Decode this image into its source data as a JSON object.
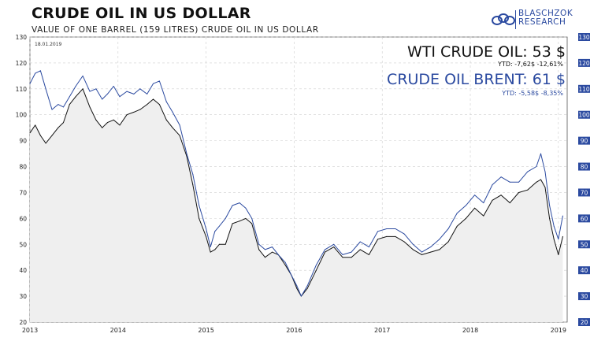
{
  "header": {
    "title": "CRUDE OIL IN US DOLLAR",
    "subtitle": "VALUE OF ONE BARREL (159 LITRES) CRUDE OIL IN US DOLLAR",
    "logo_line1": "BLASCHZOK",
    "logo_line2": "RESEARCH",
    "date": "18.01.2019"
  },
  "annotations": {
    "wti_label": "WTI CRUDE OIL: 53 $",
    "wti_ytd": "YTD:   -7,62$   -12,61%",
    "brent_label": "CRUDE OIL BRENT: 61 $",
    "brent_ytd": "YTD:   -5,58$   -8,35%"
  },
  "colors": {
    "wti": "#111111",
    "brent": "#2b4aa0",
    "fill": "#efefef",
    "right_axis": "#2b4aa0"
  },
  "chart_data": {
    "type": "line",
    "title": "CRUDE OIL IN US DOLLAR",
    "xlabel": "",
    "ylabel": "",
    "ylim": [
      20,
      130
    ],
    "xlim": [
      2013.0,
      2019.1
    ],
    "yticks": [
      20,
      30,
      40,
      50,
      60,
      70,
      80,
      90,
      100,
      110,
      120,
      130
    ],
    "xticks": [
      2013,
      2014,
      2015,
      2016,
      2017,
      2018,
      2019
    ],
    "grid": true,
    "series": [
      {
        "name": "WTI Crude Oil",
        "color": "#111111",
        "fill": true,
        "x": [
          2013.0,
          2013.06,
          2013.12,
          2013.18,
          2013.25,
          2013.32,
          2013.38,
          2013.45,
          2013.52,
          2013.6,
          2013.68,
          2013.75,
          2013.82,
          2013.88,
          2013.95,
          2014.02,
          2014.1,
          2014.18,
          2014.25,
          2014.33,
          2014.4,
          2014.47,
          2014.55,
          2014.62,
          2014.7,
          2014.78,
          2014.85,
          2014.92,
          2015.0,
          2015.05,
          2015.1,
          2015.15,
          2015.22,
          2015.3,
          2015.38,
          2015.45,
          2015.52,
          2015.6,
          2015.67,
          2015.75,
          2015.82,
          2015.9,
          2015.97,
          2016.03,
          2016.08,
          2016.15,
          2016.25,
          2016.35,
          2016.45,
          2016.55,
          2016.65,
          2016.75,
          2016.85,
          2016.95,
          2017.05,
          2017.15,
          2017.25,
          2017.35,
          2017.45,
          2017.55,
          2017.65,
          2017.75,
          2017.85,
          2017.95,
          2018.05,
          2018.15,
          2018.25,
          2018.35,
          2018.45,
          2018.55,
          2018.65,
          2018.75,
          2018.8,
          2018.85,
          2018.9,
          2018.95,
          2019.0,
          2019.05
        ],
        "values": [
          93,
          96,
          92,
          89,
          92,
          95,
          97,
          104,
          107,
          110,
          103,
          98,
          95,
          97,
          98,
          96,
          100,
          101,
          102,
          104,
          106,
          104,
          98,
          95,
          92,
          84,
          73,
          60,
          53,
          47,
          48,
          50,
          50,
          58,
          59,
          60,
          58,
          48,
          45,
          47,
          46,
          42,
          38,
          33,
          30,
          33,
          40,
          47,
          49,
          45,
          45,
          48,
          46,
          52,
          53,
          53,
          51,
          48,
          46,
          47,
          48,
          51,
          57,
          60,
          64,
          61,
          67,
          69,
          66,
          70,
          71,
          74,
          75,
          72,
          60,
          52,
          46,
          53
        ]
      },
      {
        "name": "Crude Oil Brent",
        "color": "#2b4aa0",
        "fill": false,
        "x": [
          2013.0,
          2013.06,
          2013.12,
          2013.18,
          2013.25,
          2013.32,
          2013.38,
          2013.45,
          2013.52,
          2013.6,
          2013.68,
          2013.75,
          2013.82,
          2013.88,
          2013.95,
          2014.02,
          2014.1,
          2014.18,
          2014.25,
          2014.33,
          2014.4,
          2014.47,
          2014.55,
          2014.62,
          2014.7,
          2014.78,
          2014.85,
          2014.92,
          2015.0,
          2015.05,
          2015.1,
          2015.15,
          2015.22,
          2015.3,
          2015.38,
          2015.45,
          2015.52,
          2015.6,
          2015.67,
          2015.75,
          2015.82,
          2015.9,
          2015.97,
          2016.03,
          2016.08,
          2016.15,
          2016.25,
          2016.35,
          2016.45,
          2016.55,
          2016.65,
          2016.75,
          2016.85,
          2016.95,
          2017.05,
          2017.15,
          2017.25,
          2017.35,
          2017.45,
          2017.55,
          2017.65,
          2017.75,
          2017.85,
          2017.95,
          2018.05,
          2018.15,
          2018.25,
          2018.35,
          2018.45,
          2018.55,
          2018.65,
          2018.75,
          2018.8,
          2018.85,
          2018.9,
          2018.95,
          2019.0,
          2019.05
        ],
        "values": [
          112,
          116,
          117,
          110,
          102,
          104,
          103,
          107,
          111,
          115,
          109,
          110,
          106,
          108,
          111,
          107,
          109,
          108,
          110,
          108,
          112,
          113,
          105,
          101,
          96,
          85,
          77,
          65,
          56,
          49,
          55,
          57,
          60,
          65,
          66,
          64,
          60,
          50,
          48,
          49,
          46,
          43,
          38,
          34,
          30,
          34,
          42,
          48,
          50,
          46,
          47,
          51,
          49,
          55,
          56,
          56,
          54,
          50,
          47,
          49,
          52,
          56,
          62,
          65,
          69,
          66,
          73,
          76,
          74,
          74,
          78,
          80,
          85,
          78,
          65,
          57,
          52,
          61
        ]
      }
    ]
  }
}
